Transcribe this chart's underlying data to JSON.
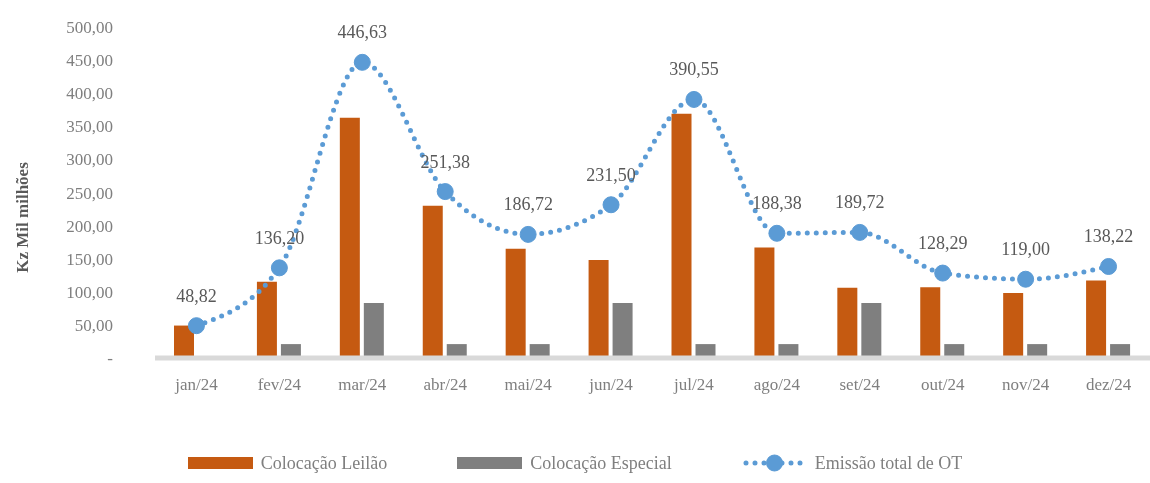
{
  "chart_data": {
    "type": "bar",
    "ylabel": "Kz Mil milhões",
    "categories": [
      "jan/24",
      "fev/24",
      "mar/24",
      "abr/24",
      "mai/24",
      "jun/24",
      "jul/24",
      "ago/24",
      "set/24",
      "out/24",
      "nov/24",
      "dez/24"
    ],
    "series": [
      {
        "name": "Colocação Leilão",
        "color": "#c55a11",
        "values": [
          49,
          115,
          363,
          230,
          165,
          148,
          369,
          167,
          106,
          107,
          98,
          117
        ]
      },
      {
        "name": "Colocação Especial",
        "color": "#7f7f7f",
        "values": [
          null,
          21,
          83,
          21,
          21,
          83,
          21,
          21,
          83,
          21,
          21,
          21
        ]
      },
      {
        "name": "Emissão total de OT",
        "type": "line",
        "color": "#5b9bd5",
        "values": [
          48.82,
          136.2,
          446.63,
          251.38,
          186.72,
          231.5,
          390.55,
          188.38,
          189.72,
          128.29,
          119,
          138.22
        ],
        "value_labels": [
          "48,82",
          "136,20",
          "446,63",
          "251,38",
          "186,72",
          "231,50",
          "390,55",
          "188,38",
          "189,72",
          "128,29",
          "119,00",
          "138,22"
        ]
      }
    ],
    "ylim": [
      0,
      500
    ],
    "yticks": [
      {
        "value": 0,
        "label": "-"
      },
      {
        "value": 50,
        "label": "50,00"
      },
      {
        "value": 100,
        "label": "100,00"
      },
      {
        "value": 150,
        "label": "150,00"
      },
      {
        "value": 200,
        "label": "200,00"
      },
      {
        "value": 250,
        "label": "250,00"
      },
      {
        "value": 300,
        "label": "300,00"
      },
      {
        "value": 350,
        "label": "350,00"
      },
      {
        "value": 400,
        "label": "400,00"
      },
      {
        "value": 450,
        "label": "450,00"
      },
      {
        "value": 500,
        "label": "500,00"
      }
    ],
    "legend": "bottom",
    "marker": "circle",
    "line_style": "dotted"
  }
}
